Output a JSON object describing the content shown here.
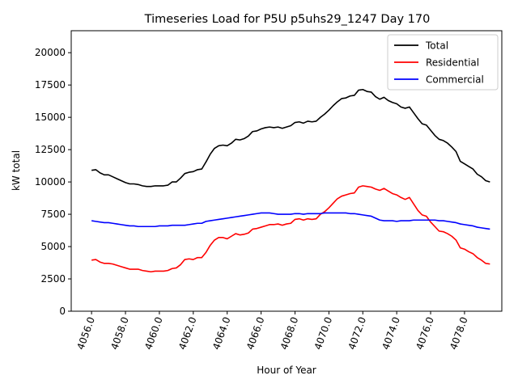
{
  "chart_data": {
    "type": "line",
    "title": "Timeseries Load for P5U p5uhs29_1247  Day 170",
    "xlabel": "Hour of Year",
    "ylabel": "kW total",
    "xlim": [
      4054.8,
      4080.2
    ],
    "ylim": [
      0,
      21700
    ],
    "xticks": [
      4056,
      4058,
      4060,
      4062,
      4064,
      4066,
      4068,
      4070,
      4072,
      4074,
      4076,
      4078
    ],
    "xtick_labels": [
      "4056.0",
      "4058.0",
      "4060.0",
      "4062.0",
      "4064.0",
      "4066.0",
      "4068.0",
      "4070.0",
      "4072.0",
      "4074.0",
      "4076.0",
      "4078.0"
    ],
    "yticks": [
      0,
      2500,
      5000,
      7500,
      10000,
      12500,
      15000,
      17500,
      20000
    ],
    "ytick_labels": [
      "0",
      "2500",
      "5000",
      "7500",
      "10000",
      "12500",
      "15000",
      "17500",
      "20000"
    ],
    "legend_position": "top-right",
    "x_start": 4056,
    "x_step": 0.25,
    "series": [
      {
        "name": "Total",
        "color": "#000000",
        "values": [
          10900,
          10950,
          10700,
          10550,
          10550,
          10400,
          10250,
          10100,
          9950,
          9850,
          9850,
          9800,
          9700,
          9650,
          9650,
          9700,
          9700,
          9700,
          9750,
          10000,
          10000,
          10300,
          10650,
          10750,
          10800,
          10950,
          11000,
          11550,
          12150,
          12600,
          12800,
          12850,
          12800,
          13000,
          13300,
          13250,
          13350,
          13550,
          13900,
          13950,
          14100,
          14200,
          14250,
          14200,
          14250,
          14150,
          14250,
          14350,
          14600,
          14650,
          14550,
          14700,
          14650,
          14700,
          15000,
          15250,
          15550,
          15900,
          16200,
          16450,
          16500,
          16650,
          16700,
          17100,
          17150,
          17000,
          16950,
          16600,
          16400,
          16550,
          16300,
          16150,
          16050,
          15800,
          15700,
          15800,
          15350,
          14900,
          14500,
          14400,
          14000,
          13600,
          13300,
          13200,
          13000,
          12700,
          12350,
          11600,
          11400,
          11200,
          11000,
          10600,
          10400,
          10100,
          10000
        ]
      },
      {
        "name": "Residential",
        "color": "#ff0000",
        "values": [
          3950,
          4000,
          3800,
          3700,
          3700,
          3650,
          3550,
          3450,
          3350,
          3250,
          3250,
          3250,
          3150,
          3100,
          3050,
          3100,
          3100,
          3100,
          3150,
          3300,
          3350,
          3600,
          4000,
          4050,
          4000,
          4150,
          4150,
          4550,
          5100,
          5500,
          5700,
          5700,
          5600,
          5800,
          6000,
          5900,
          5950,
          6050,
          6350,
          6400,
          6500,
          6600,
          6700,
          6700,
          6750,
          6650,
          6750,
          6800,
          7100,
          7150,
          7050,
          7150,
          7100,
          7150,
          7500,
          7700,
          8000,
          8350,
          8700,
          8900,
          9000,
          9100,
          9150,
          9600,
          9700,
          9650,
          9600,
          9450,
          9350,
          9500,
          9300,
          9100,
          9000,
          8800,
          8650,
          8800,
          8300,
          7800,
          7450,
          7350,
          6900,
          6550,
          6200,
          6150,
          6000,
          5800,
          5500,
          4900,
          4800,
          4600,
          4450,
          4150,
          3950,
          3700,
          3650
        ]
      },
      {
        "name": "Commercial",
        "color": "#0000ff",
        "values": [
          7000,
          6950,
          6900,
          6850,
          6850,
          6800,
          6750,
          6700,
          6650,
          6600,
          6600,
          6550,
          6550,
          6550,
          6550,
          6550,
          6600,
          6600,
          6600,
          6650,
          6650,
          6650,
          6650,
          6700,
          6750,
          6800,
          6800,
          6950,
          7000,
          7050,
          7100,
          7150,
          7200,
          7250,
          7300,
          7350,
          7400,
          7450,
          7500,
          7550,
          7600,
          7600,
          7600,
          7550,
          7500,
          7500,
          7500,
          7500,
          7550,
          7550,
          7500,
          7550,
          7550,
          7550,
          7550,
          7600,
          7600,
          7600,
          7600,
          7600,
          7600,
          7550,
          7550,
          7500,
          7450,
          7400,
          7350,
          7200,
          7050,
          7000,
          7000,
          7000,
          6950,
          7000,
          7000,
          7000,
          7050,
          7050,
          7050,
          7050,
          7050,
          7050,
          7000,
          7000,
          6950,
          6900,
          6850,
          6750,
          6700,
          6650,
          6600,
          6500,
          6450,
          6400,
          6350
        ]
      }
    ]
  }
}
